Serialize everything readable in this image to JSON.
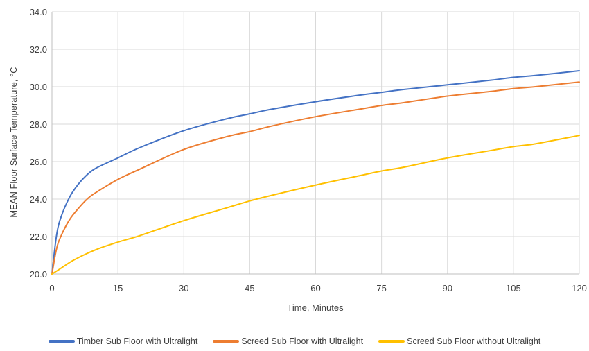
{
  "chart_data": {
    "type": "line",
    "title": "",
    "xlabel": "Time, Minutes",
    "ylabel": "MEAN Floor Surface Temperature, °C",
    "xlim": [
      0,
      120
    ],
    "ylim": [
      20,
      34
    ],
    "x_ticks": [
      "0",
      "15",
      "30",
      "45",
      "60",
      "75",
      "90",
      "105",
      "120"
    ],
    "y_ticks": [
      "20.0",
      "22.0",
      "24.0",
      "26.0",
      "28.0",
      "30.0",
      "32.0",
      "34.0"
    ],
    "grid": true,
    "legend_position": "bottom",
    "series": [
      {
        "name": "Timber Sub Floor with Ultralight",
        "color": "#4472C4",
        "x": [
          0,
          1,
          2,
          4,
          6,
          8,
          10,
          15,
          20,
          30,
          40,
          45,
          50,
          60,
          70,
          75,
          80,
          90,
          100,
          105,
          110,
          120
        ],
        "y": [
          20.0,
          22.0,
          23.0,
          24.1,
          24.8,
          25.3,
          25.65,
          26.2,
          26.75,
          27.65,
          28.3,
          28.55,
          28.8,
          29.2,
          29.55,
          29.7,
          29.85,
          30.1,
          30.35,
          30.5,
          30.6,
          30.85
        ]
      },
      {
        "name": "Screed Sub Floor with Ultralight",
        "color": "#ED7D31",
        "x": [
          0,
          1,
          2,
          4,
          6,
          8,
          10,
          15,
          20,
          30,
          40,
          45,
          50,
          60,
          70,
          75,
          80,
          90,
          100,
          105,
          110,
          120
        ],
        "y": [
          20.0,
          21.3,
          22.0,
          22.9,
          23.5,
          24.0,
          24.35,
          25.05,
          25.6,
          26.65,
          27.35,
          27.6,
          27.9,
          28.4,
          28.8,
          29.0,
          29.15,
          29.5,
          29.75,
          29.9,
          30.0,
          30.25
        ]
      },
      {
        "name": "Screed Sub Floor without Ultralight",
        "color": "#FFC000",
        "x": [
          0,
          2,
          5,
          10,
          15,
          20,
          30,
          40,
          45,
          50,
          60,
          70,
          75,
          80,
          90,
          100,
          105,
          110,
          120
        ],
        "y": [
          20.0,
          20.3,
          20.75,
          21.3,
          21.7,
          22.05,
          22.85,
          23.55,
          23.9,
          24.2,
          24.75,
          25.25,
          25.5,
          25.7,
          26.2,
          26.6,
          26.8,
          26.95,
          27.4
        ]
      }
    ]
  }
}
